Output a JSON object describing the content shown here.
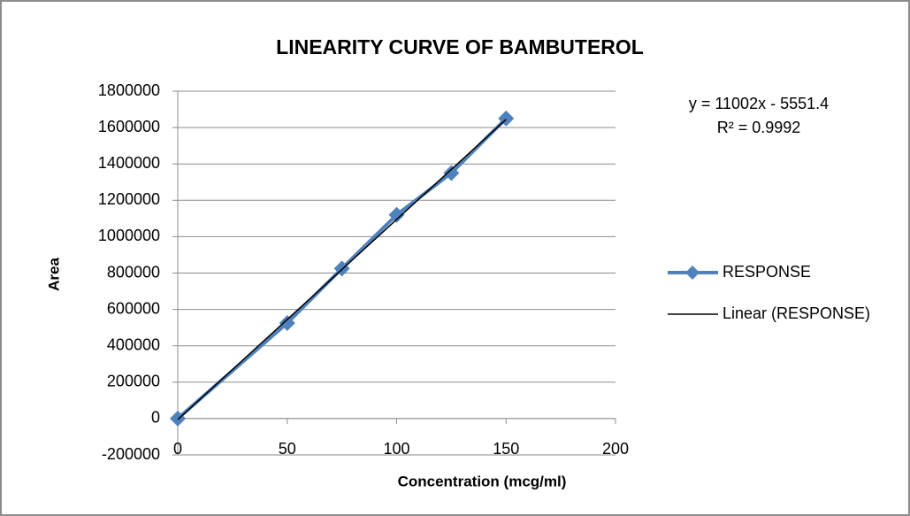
{
  "chart_data": {
    "type": "scatter",
    "title": "LINEARITY CURVE OF BAMBUTEROL",
    "xlabel": "Concentration (mcg/ml)",
    "ylabel": "Area",
    "series": [
      {
        "name": "RESPONSE",
        "color": "#4f81bd",
        "style": "line-marker",
        "x": [
          0,
          50,
          75,
          100,
          125,
          150
        ],
        "values": [
          0,
          525000,
          825000,
          1120000,
          1350000,
          1650000
        ]
      },
      {
        "name": "Linear (RESPONSE)",
        "color": "#000000",
        "style": "line",
        "x": [
          0,
          150
        ],
        "values": [
          -5551,
          1644749
        ]
      }
    ],
    "annotations": [
      "y = 11002x - 5551.4",
      "R² = 0.9992"
    ],
    "xlim": [
      0,
      200
    ],
    "xticks": [
      0,
      50,
      100,
      150,
      200
    ],
    "ylim": [
      -200000,
      1800000
    ],
    "yticks": [
      -200000,
      0,
      200000,
      400000,
      600000,
      800000,
      1000000,
      1200000,
      1400000,
      1600000,
      1800000
    ],
    "grid": true,
    "legend": "right"
  }
}
